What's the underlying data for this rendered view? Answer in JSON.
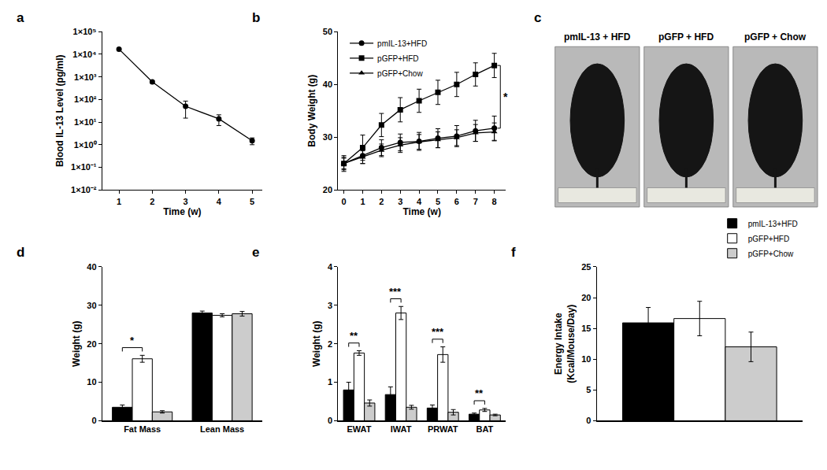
{
  "chart_data": [
    {
      "label": "a",
      "type": "line",
      "x": [
        1,
        2,
        3,
        4,
        5
      ],
      "values": [
        17000,
        600,
        50,
        14,
        1.5
      ],
      "errors": [
        1500,
        60,
        35,
        7,
        0.5
      ],
      "color": "#000000",
      "marker": "circle",
      "log": "y",
      "xlim": [
        0.5,
        5.3
      ],
      "xticks": [
        1,
        2,
        3,
        4,
        5
      ],
      "ylim": [
        0.01,
        100000
      ],
      "yticks": [
        {
          "value": 0.01,
          "label": "1×10⁻²"
        },
        {
          "value": 0.1,
          "label": "1×10⁻¹"
        },
        {
          "value": 1,
          "label": "1×10⁰"
        },
        {
          "value": 10,
          "label": "1×10¹"
        },
        {
          "value": 100,
          "label": "1×10²"
        },
        {
          "value": 1000,
          "label": "1×10³"
        },
        {
          "value": 10000,
          "label": "1×10⁴"
        },
        {
          "value": 100000,
          "label": "1×10⁵"
        }
      ],
      "x_label": "Time (w)",
      "y_label": "Blood IL-13 Level (pg/ml)"
    },
    {
      "label": "b",
      "type": "line",
      "x": [
        0,
        1,
        2,
        3,
        4,
        5,
        6,
        7,
        8
      ],
      "series": [
        {
          "name": "pmIL-13+HFD",
          "color": "#000000",
          "marker": "circle",
          "values": [
            25,
            26.5,
            28,
            29,
            29.2,
            29.8,
            30.2,
            31.2,
            31.7
          ],
          "errors": [
            1.2,
            1.5,
            1.5,
            1.6,
            1.7,
            1.8,
            2,
            2,
            2.3
          ]
        },
        {
          "name": "pGFP+HFD",
          "color": "#000000",
          "marker": "square",
          "values": [
            25,
            28,
            32.3,
            35.2,
            36.9,
            38.5,
            40,
            41.9,
            43.6
          ],
          "errors": [
            1.5,
            2.4,
            2.2,
            2.3,
            2.2,
            2.3,
            2.3,
            2.2,
            2.3
          ]
        },
        {
          "name": "pGFP+Chow",
          "color": "#000000",
          "marker": "triangle",
          "values": [
            25,
            26.2,
            27.5,
            28.5,
            29.1,
            29.5,
            29.9,
            30.8,
            31
          ],
          "errors": [
            1,
            1.2,
            1.2,
            1.4,
            1.4,
            1.5,
            1.5,
            1.6,
            1.7
          ]
        }
      ],
      "legend": "upper left",
      "annotations": [
        {
          "text": "*",
          "between": [
            "pmIL-13+HFD",
            "pGFP+HFD"
          ]
        }
      ],
      "xlim": [
        -0.3,
        8.6
      ],
      "xticks": [
        0,
        1,
        2,
        3,
        4,
        5,
        6,
        7,
        8
      ],
      "ylim": [
        20,
        50
      ],
      "yticks": [
        20,
        30,
        40,
        50
      ],
      "x_label": "Time (w)",
      "y_label": "Body Weight (g)"
    },
    {
      "label": "d",
      "type": "bar",
      "categories": [
        "Fat Mass",
        "Lean Mass"
      ],
      "series": [
        {
          "name": "pmIL-13+HFD",
          "color": "#000000",
          "values": [
            3.5,
            28
          ],
          "errors": [
            0.6,
            0.5
          ]
        },
        {
          "name": "pGFP+HFD",
          "color": "#ffffff",
          "values": [
            16.1,
            27.4
          ],
          "errors": [
            0.9,
            0.4
          ]
        },
        {
          "name": "pGFP+Chow",
          "color": "#cccccc",
          "values": [
            2.3,
            27.8
          ],
          "errors": [
            0.3,
            0.6
          ]
        }
      ],
      "annotations": [
        {
          "text": "*",
          "category": "Fat Mass",
          "between": [
            "pmIL-13+HFD",
            "pGFP+HFD"
          ]
        }
      ],
      "ylim": [
        0,
        40
      ],
      "yticks": [
        0,
        10,
        20,
        30,
        40
      ],
      "y_label": "Weight (g)"
    },
    {
      "label": "e",
      "type": "bar",
      "categories": [
        "EWAT",
        "IWAT",
        "PRWAT",
        "BAT"
      ],
      "series": [
        {
          "name": "pmIL-13+HFD",
          "color": "#000000",
          "values": [
            0.8,
            0.68,
            0.33,
            0.17
          ],
          "errors": [
            0.2,
            0.2,
            0.08,
            0.03
          ]
        },
        {
          "name": "pGFP+HFD",
          "color": "#ffffff",
          "values": [
            1.76,
            2.8,
            1.72,
            0.28
          ],
          "errors": [
            0.06,
            0.17,
            0.2,
            0.04
          ]
        },
        {
          "name": "pGFP+Chow",
          "color": "#cccccc",
          "values": [
            0.46,
            0.35,
            0.22,
            0.15
          ],
          "errors": [
            0.08,
            0.05,
            0.07,
            0.02
          ]
        }
      ],
      "annotations": [
        {
          "text": "**",
          "category": "EWAT",
          "between": [
            "pmIL-13+HFD",
            "pGFP+HFD"
          ]
        },
        {
          "text": "***",
          "category": "IWAT",
          "between": [
            "pmIL-13+HFD",
            "pGFP+HFD"
          ]
        },
        {
          "text": "***",
          "category": "PRWAT",
          "between": [
            "pmIL-13+HFD",
            "pGFP+HFD"
          ]
        },
        {
          "text": "**",
          "category": "BAT",
          "between": [
            "pmIL-13+HFD",
            "pGFP+HFD"
          ]
        }
      ],
      "ylim": [
        0,
        4
      ],
      "yticks": [
        0,
        1,
        2,
        3,
        4
      ],
      "y_label": "Weight (g)"
    },
    {
      "label": "f",
      "type": "bar",
      "categories": [
        null
      ],
      "series": [
        {
          "name": "pmIL-13+HFD",
          "color": "#000000",
          "values": [
            15.9
          ],
          "errors": [
            2.5
          ]
        },
        {
          "name": "pGFP+HFD",
          "color": "#ffffff",
          "values": [
            16.6
          ],
          "errors": [
            2.8
          ]
        },
        {
          "name": "pGFP+Chow",
          "color": "#cccccc",
          "values": [
            12
          ],
          "errors": [
            2.4
          ]
        }
      ],
      "legend": "upper right",
      "tick_labels": "y",
      "ylim": [
        0,
        25
      ],
      "yticks": [
        0,
        5,
        10,
        15,
        20,
        25
      ],
      "y_label": "Energy Intake\n(Kcal/Mouse/Day)"
    }
  ],
  "photos": {
    "label": "c",
    "captions": [
      "pmIL-13 + HFD",
      "pGFP + HFD",
      "pGFP + Chow"
    ]
  }
}
